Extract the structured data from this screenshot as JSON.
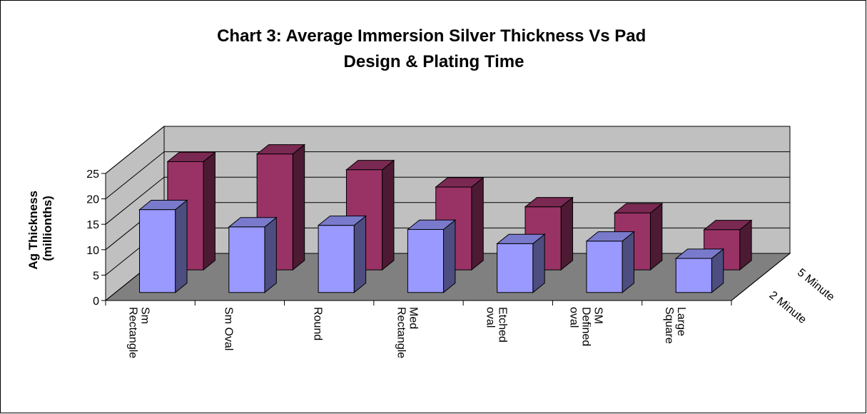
{
  "chart_data": {
    "type": "bar3d",
    "title": "Chart 3: Average Immersion Silver Thickness Vs Pad Design & Plating Time",
    "y_label": "Ag Thickness (millionths)",
    "categories": [
      "Sm Rectangle",
      "Sm Oval",
      "Round",
      "Med Rectangle",
      "Etched oval",
      "SM Defined oval",
      "Large Square"
    ],
    "series": [
      {
        "name": "2 Minute",
        "color": "#9999ff",
        "values": [
          16.3,
          12.9,
          13.2,
          12.4,
          9.6,
          10.1,
          6.7
        ]
      },
      {
        "name": "5 Minute",
        "color": "#993366",
        "values": [
          21.3,
          22.8,
          19.7,
          16.3,
          12.4,
          11.2,
          7.9
        ]
      }
    ],
    "ylim": [
      0,
      25
    ],
    "yticks": [
      0,
      5,
      10,
      15,
      20,
      25
    ],
    "grid": true
  }
}
